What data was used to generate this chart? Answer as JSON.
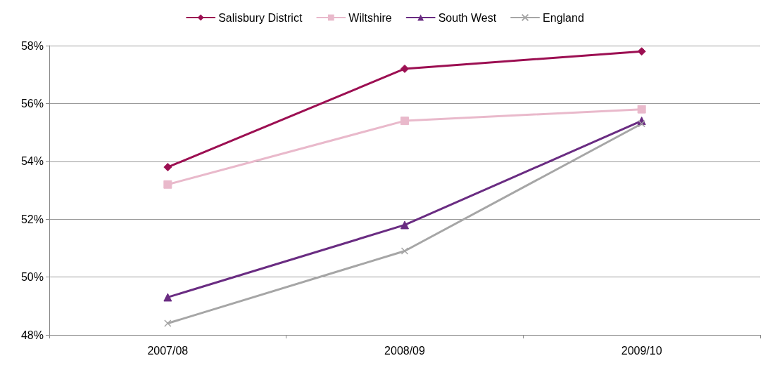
{
  "chart_data": {
    "type": "line",
    "categories": [
      "2007/08",
      "2008/09",
      "2009/10"
    ],
    "series": [
      {
        "name": "Salisbury District",
        "color": "#9c0f52",
        "marker": "diamond",
        "values": [
          53.8,
          57.2,
          57.8
        ]
      },
      {
        "name": "Wiltshire",
        "color": "#e9b9cb",
        "marker": "square",
        "values": [
          53.2,
          55.4,
          55.8
        ]
      },
      {
        "name": "South West",
        "color": "#6a2c82",
        "marker": "triangle",
        "values": [
          49.3,
          51.8,
          55.4
        ]
      },
      {
        "name": "England",
        "color": "#a6a6a6",
        "marker": "cross",
        "values": [
          48.4,
          50.9,
          55.3
        ]
      }
    ],
    "ylim": [
      48,
      58
    ],
    "yticks": [
      {
        "value": 48,
        "label": "48%"
      },
      {
        "value": 50,
        "label": "50%"
      },
      {
        "value": 52,
        "label": "52%"
      },
      {
        "value": 54,
        "label": "54%"
      },
      {
        "value": 56,
        "label": "56%"
      },
      {
        "value": 58,
        "label": "58%"
      }
    ],
    "grid": "y",
    "legend": "top",
    "line_style": "solid"
  }
}
